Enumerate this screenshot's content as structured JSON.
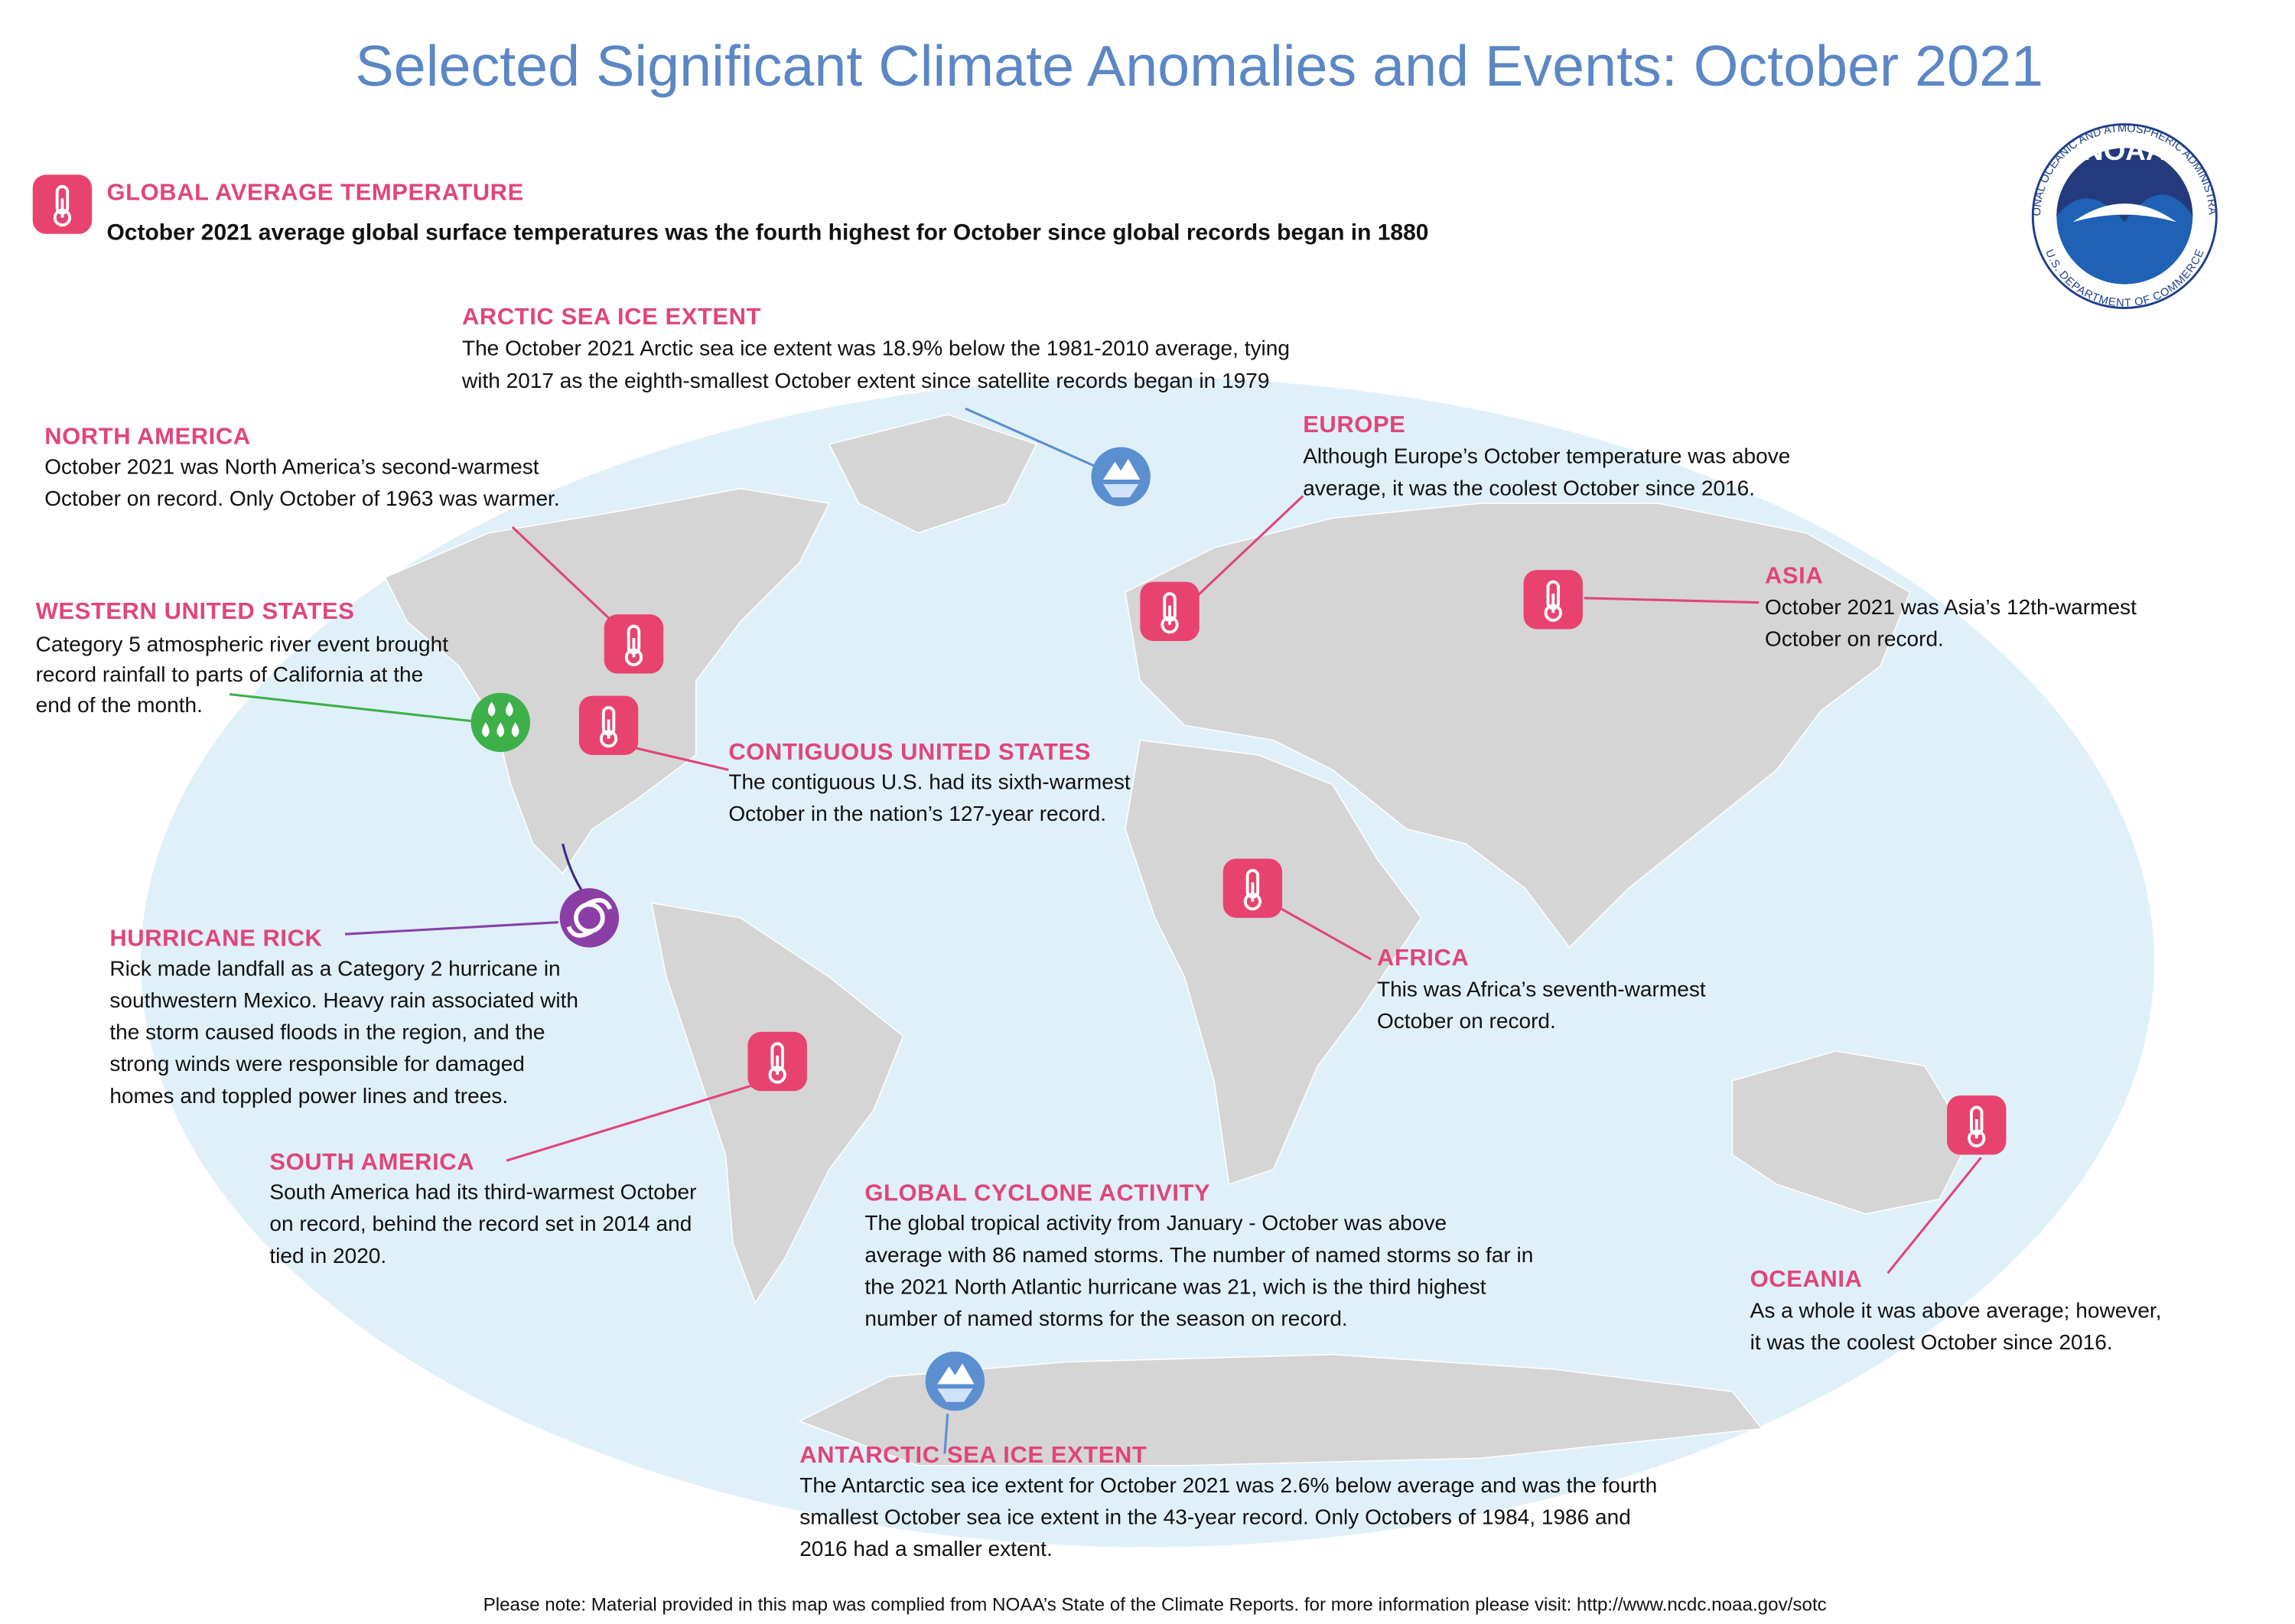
{
  "title": "Selected Significant Climate Anomalies and Events: October 2021",
  "logo": {
    "name": "NOAA",
    "ring_top": "NATIONAL OCEANIC AND ATMOSPHERIC ADMINISTRATION",
    "ring_bottom": "U.S. DEPARTMENT OF COMMERCE"
  },
  "global": {
    "heading": "GLOBAL AVERAGE TEMPERATURE",
    "text": "October 2021 average global surface temperatures was the fourth highest for October since global records began in 1880"
  },
  "events": [
    {
      "heading": "ARCTIC SEA ICE EXTENT",
      "lines": [
        "The October 2021 Arctic sea ice extent was 18.9% below the 1981-2010 average, tying",
        "with 2017 as the  eighth-smallest October extent since satellite records began in 1979"
      ]
    },
    {
      "heading": "NORTH AMERICA",
      "lines": [
        "October 2021 was North America’s second-warmest",
        "October on record. Only October of 1963 was warmer."
      ]
    },
    {
      "heading": "WESTERN UNITED STATES",
      "lines": [
        "Category 5 atmospheric river event brought",
        "record rainfall to parts of California at the",
        "end of the month."
      ]
    },
    {
      "heading": "CONTIGUOUS UNITED STATES",
      "lines": [
        "The contiguous U.S. had its sixth-warmest",
        "October in the nation’s 127-year record."
      ]
    },
    {
      "heading": "HURRICANE RICK",
      "lines": [
        "Rick made landfall as a Category 2 hurricane in",
        "southwestern Mexico. Heavy rain associated with",
        "the storm caused floods in the region, and the",
        "strong winds were responsible for damaged",
        "homes and toppled power lines and trees."
      ]
    },
    {
      "heading": "SOUTH AMERICA",
      "lines": [
        "South America had its third-warmest October",
        "on record, behind the record set in 2014 and",
        "tied in 2020."
      ]
    },
    {
      "heading": "GLOBAL CYCLONE ACTIVITY",
      "lines": [
        "The global tropical activity from January - October was above",
        "average with 86 named storms. The number of named storms so far in",
        "the 2021 North Atlantic hurricane was 21, wich is the third highest",
        "number of named storms for the season on record."
      ]
    },
    {
      "heading": "ANTARCTIC SEA ICE EXTENT",
      "lines": [
        "The Antarctic sea ice extent for October 2021 was 2.6% below average and was the fourth",
        "smallest October sea ice extent in the 43-year record. Only Octobers of 1984, 1986 and",
        "2016 had a smaller extent."
      ]
    },
    {
      "heading": "EUROPE",
      "lines": [
        "Although Europe’s October temperature was above",
        "average, it was the coolest October since 2016."
      ]
    },
    {
      "heading": "ASIA",
      "lines": [
        "October 2021 was Asia’s 12th-warmest",
        "October on record."
      ]
    },
    {
      "heading": "AFRICA",
      "lines": [
        "This was Africa’s seventh-warmest",
        "October on record."
      ]
    },
    {
      "heading": "OCEANIA",
      "lines": [
        "As a whole it was above average; however,",
        "it was the coolest October since 2016."
      ]
    }
  ],
  "footer": "Please note: Material provided in this map was complied from NOAA’s State of the Climate Reports. for more information please visit: http://www.ncdc.noaa.gov/sotc"
}
